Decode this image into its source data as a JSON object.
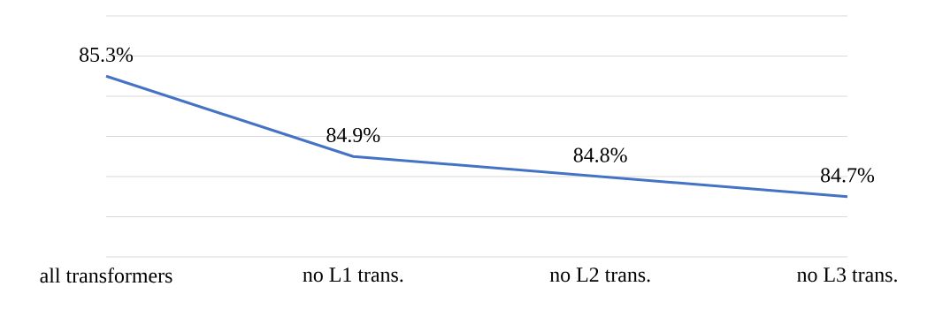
{
  "chart_data": {
    "type": "line",
    "categories": [
      "all transformers",
      "no L1 trans.",
      "no L2 trans.",
      "no L3 trans."
    ],
    "values": [
      85.3,
      84.9,
      84.8,
      84.7
    ],
    "value_labels": [
      "85.3%",
      "84.9%",
      "84.8%",
      "84.7%"
    ],
    "color": "#4472c4",
    "grid": "y",
    "tick_labels": "x"
  }
}
